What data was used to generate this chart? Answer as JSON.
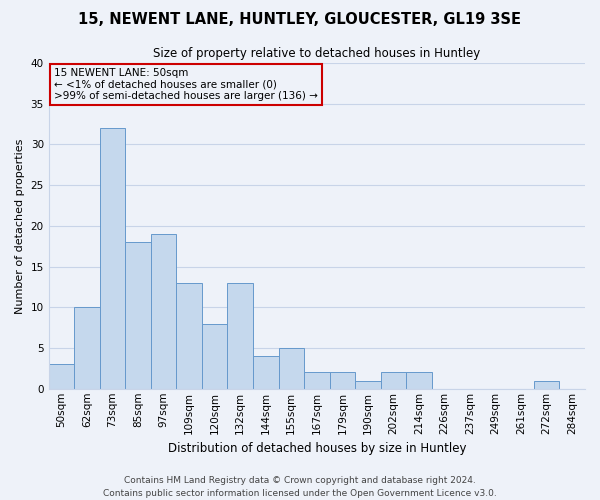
{
  "title": "15, NEWENT LANE, HUNTLEY, GLOUCESTER, GL19 3SE",
  "subtitle": "Size of property relative to detached houses in Huntley",
  "xlabel": "Distribution of detached houses by size in Huntley",
  "ylabel": "Number of detached properties",
  "bar_labels": [
    "50sqm",
    "62sqm",
    "73sqm",
    "85sqm",
    "97sqm",
    "109sqm",
    "120sqm",
    "132sqm",
    "144sqm",
    "155sqm",
    "167sqm",
    "179sqm",
    "190sqm",
    "202sqm",
    "214sqm",
    "226sqm",
    "237sqm",
    "249sqm",
    "261sqm",
    "272sqm",
    "284sqm"
  ],
  "bar_values": [
    3,
    10,
    32,
    18,
    19,
    13,
    8,
    13,
    4,
    5,
    2,
    2,
    1,
    2,
    2,
    0,
    0,
    0,
    0,
    1,
    0
  ],
  "bar_color": "#c5d8ed",
  "bar_edge_color": "#6699cc",
  "grid_color": "#c8d4e8",
  "background_color": "#eef2f9",
  "ylim": [
    0,
    40
  ],
  "yticks": [
    0,
    5,
    10,
    15,
    20,
    25,
    30,
    35,
    40
  ],
  "annotation_line1": "15 NEWENT LANE: 50sqm",
  "annotation_line2": "← <1% of detached houses are smaller (0)",
  "annotation_line3": ">99% of semi-detached houses are larger (136) →",
  "annotation_box_color": "#cc0000",
  "footer_line1": "Contains HM Land Registry data © Crown copyright and database right 2024.",
  "footer_line2": "Contains public sector information licensed under the Open Government Licence v3.0.",
  "title_fontsize": 10.5,
  "subtitle_fontsize": 8.5,
  "ylabel_fontsize": 8,
  "xlabel_fontsize": 8.5,
  "tick_fontsize": 7.5,
  "footer_fontsize": 6.5
}
